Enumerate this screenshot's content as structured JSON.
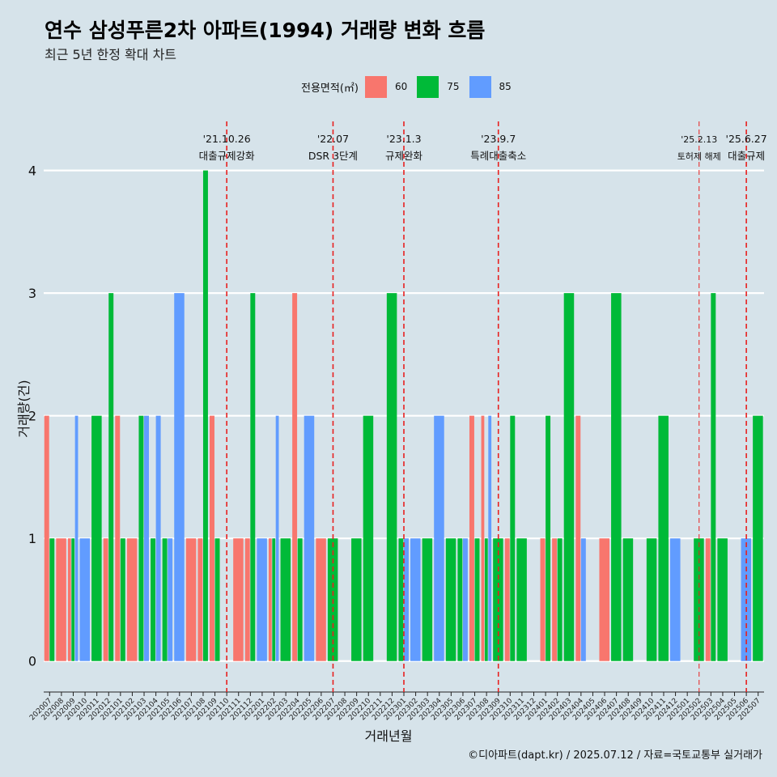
{
  "header": {
    "title": "연수 삼성푸른2차 아파트(1994) 거래량 변화 흐름",
    "subtitle": "최근 5년 한정 확대 차트"
  },
  "legend": {
    "title": "전용면적(㎡)",
    "items": [
      {
        "label": "60",
        "color": "#f8766d"
      },
      {
        "label": "75",
        "color": "#00ba38"
      },
      {
        "label": "85",
        "color": "#619cff"
      }
    ]
  },
  "caption": "©디아파트(dapt.kr) / 2025.07.12 / 자료=국토교통부 실거래가",
  "chart_data": {
    "type": "bar",
    "title": "연수 삼성푸른2차 아파트(1994) 거래량 변화 흐름",
    "subtitle": "최근 5년 한정 확대 차트",
    "xlabel": "거래년월",
    "ylabel": "거래량(건)",
    "ylim": [
      -0.18,
      4.4
    ],
    "yticks": [
      0,
      1,
      2,
      3,
      4
    ],
    "grid": "horizontal",
    "legend_position": "top",
    "categories": [
      "202007",
      "202008",
      "202009",
      "202010",
      "202011",
      "202012",
      "202101",
      "202102",
      "202103",
      "202104",
      "202105",
      "202106",
      "202107",
      "202108",
      "202109",
      "202110",
      "202111",
      "202112",
      "202201",
      "202202",
      "202203",
      "202204",
      "202205",
      "202206",
      "202207",
      "202208",
      "202209",
      "202210",
      "202211",
      "202212",
      "202301",
      "202302",
      "202303",
      "202304",
      "202305",
      "202306",
      "202307",
      "202308",
      "202309",
      "202310",
      "202311",
      "202312",
      "202401",
      "202402",
      "202403",
      "202404",
      "202405",
      "202406",
      "202407",
      "202408",
      "202409",
      "202410",
      "202411",
      "202412",
      "202501",
      "202502",
      "202503",
      "202504",
      "202505",
      "202506",
      "202507"
    ],
    "series": [
      {
        "name": "60",
        "color": "#f8766d",
        "values": [
          2,
          1,
          1,
          0,
          0,
          1,
          2,
          1,
          0,
          0,
          0,
          0,
          1,
          1,
          2,
          0,
          1,
          1,
          0,
          1,
          0,
          3,
          0,
          1,
          0,
          0,
          0,
          0,
          0,
          0,
          0,
          0,
          0,
          0,
          0,
          0,
          2,
          2,
          0,
          1,
          0,
          0,
          1,
          1,
          0,
          2,
          0,
          1,
          0,
          0,
          0,
          0,
          0,
          0,
          0,
          0,
          1,
          0,
          0,
          0,
          0
        ]
      },
      {
        "name": "75",
        "color": "#00ba38",
        "values": [
          1,
          0,
          1,
          0,
          2,
          3,
          1,
          0,
          2,
          1,
          1,
          0,
          0,
          4,
          1,
          0,
          0,
          3,
          0,
          1,
          1,
          1,
          0,
          0,
          1,
          0,
          1,
          2,
          0,
          3,
          1,
          0,
          1,
          0,
          1,
          1,
          1,
          1,
          1,
          2,
          1,
          0,
          2,
          1,
          3,
          0,
          0,
          0,
          3,
          1,
          0,
          1,
          2,
          0,
          0,
          1,
          3,
          1,
          0,
          0,
          2
        ]
      },
      {
        "name": "85",
        "color": "#619cff",
        "values": [
          0,
          0,
          2,
          1,
          0,
          0,
          0,
          0,
          2,
          2,
          1,
          3,
          0,
          0,
          0,
          0,
          0,
          0,
          1,
          2,
          0,
          0,
          2,
          0,
          0,
          0,
          0,
          0,
          0,
          0,
          1,
          1,
          0,
          2,
          0,
          1,
          0,
          2,
          0,
          0,
          0,
          0,
          0,
          0,
          0,
          1,
          0,
          0,
          0,
          0,
          0,
          0,
          0,
          1,
          0,
          0,
          0,
          0,
          0,
          1,
          0
        ]
      }
    ],
    "annotations": [
      {
        "x": "202110",
        "date": "'21.10.26",
        "label": "대출규제강화"
      },
      {
        "x": "202207",
        "date": "'22.07",
        "label": "DSR 3단계"
      },
      {
        "x": "202301",
        "date": "'23.1.3",
        "label": "규제완화"
      },
      {
        "x": "202309",
        "date": "'23.9.7",
        "label": "특례대출축소"
      },
      {
        "x": "202502",
        "date": "'25.2.13",
        "label": "토허제 해제"
      },
      {
        "x": "202506",
        "date": "'25.6.27",
        "label": "대출규제"
      }
    ]
  }
}
